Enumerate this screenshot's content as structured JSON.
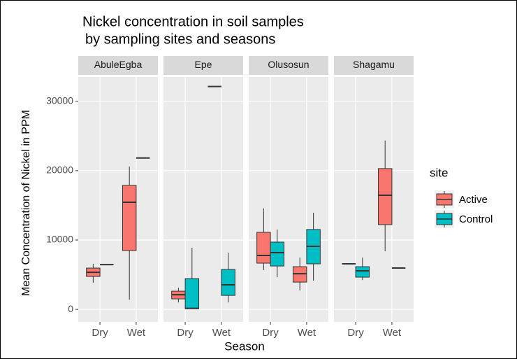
{
  "chart_data": {
    "type": "boxplot",
    "title": [
      "Nickel concentration in soil samples",
      "by sampling sites and seasons"
    ],
    "x_label": "Season",
    "y_label": "Mean Concentration of Nickel in PPM",
    "facets": [
      "AbuleEgba",
      "Epe",
      "Olusosun",
      "Shagamu"
    ],
    "categories": [
      "Dry",
      "Wet"
    ],
    "legend_title": "site",
    "ylim": [
      -1800,
      33500
    ],
    "yticks": [
      0,
      10000,
      20000,
      30000
    ],
    "grid": true,
    "series": [
      {
        "name": "Active",
        "color": "#F8766D",
        "values": [
          [
            {
              "min": 3840,
              "q1": 4750,
              "median": 5350,
              "q3": 5960,
              "max": 6570
            },
            {
              "min": 1410,
              "q1": 8480,
              "median": 15450,
              "q3": 17880,
              "max": 20600
            }
          ],
          [
            {
              "min": 1010,
              "q1": 1520,
              "median": 2120,
              "q3": 2630,
              "max": 3130
            },
            {
              "median": 32120
            }
          ],
          [
            {
              "min": 5660,
              "q1": 6670,
              "median": 7780,
              "q3": 11110,
              "max": 14550
            },
            {
              "min": 2730,
              "q1": 3940,
              "median": 5150,
              "q3": 6160,
              "max": 7470
            }
          ],
          [
            {
              "median": 6570
            },
            {
              "min": 8380,
              "q1": 12220,
              "median": 16460,
              "q3": 20300,
              "max": 24340
            }
          ]
        ]
      },
      {
        "name": "Control",
        "color": "#00BFC4",
        "values": [
          [
            {
              "median": 6460
            },
            {
              "median": 21820
            }
          ],
          [
            {
              "min": 100,
              "q1": 100,
              "median": 150,
              "q3": 4440,
              "max": 8890
            },
            {
              "min": 1010,
              "q1": 2020,
              "median": 3540,
              "q3": 5760,
              "max": 8180
            }
          ],
          [
            {
              "min": 4650,
              "q1": 6260,
              "median": 8180,
              "q3": 9700,
              "max": 11520
            },
            {
              "min": 4140,
              "q1": 6570,
              "median": 9090,
              "q3": 11520,
              "max": 13940
            }
          ],
          [
            {
              "min": 4240,
              "q1": 4650,
              "median": 5560,
              "q3": 6160,
              "max": 7470
            },
            {
              "median": 5960
            }
          ]
        ]
      }
    ]
  }
}
